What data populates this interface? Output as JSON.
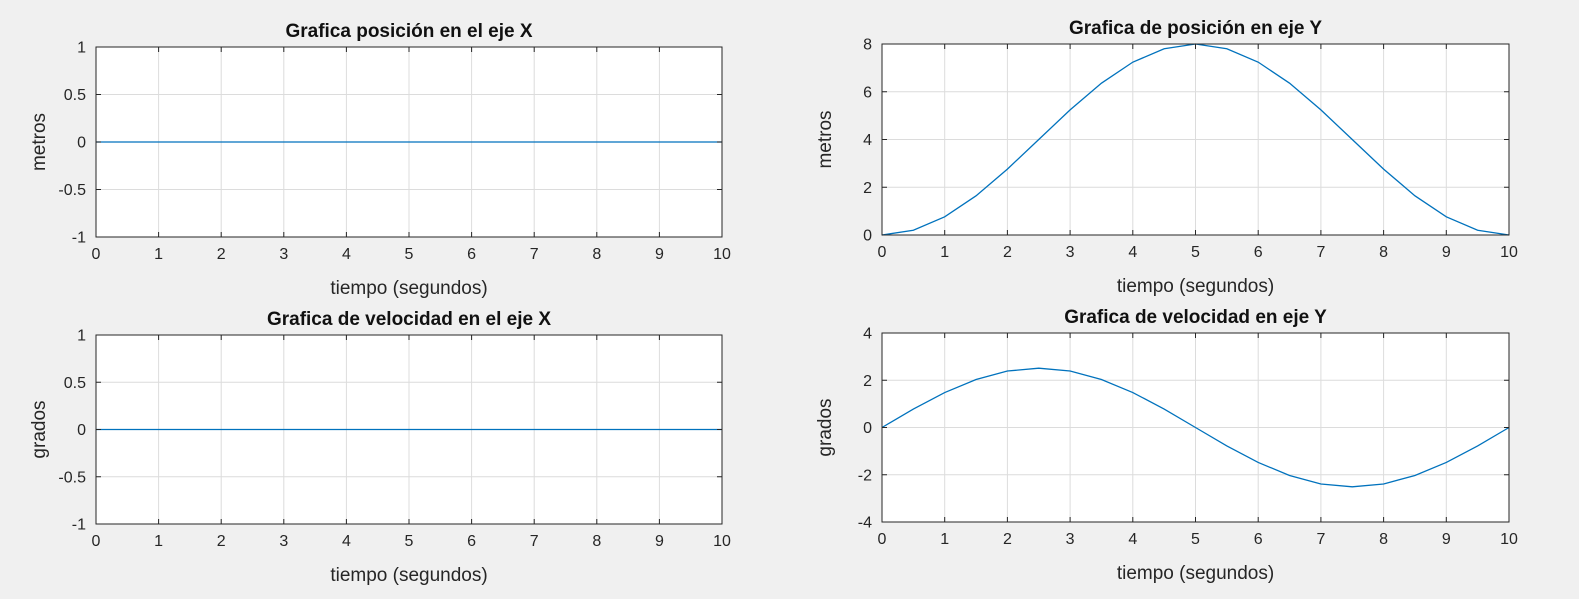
{
  "chart_data": [
    {
      "type": "line",
      "title": "Grafica posición en el eje X",
      "xlabel": "tiempo (segundos)",
      "ylabel": "metros",
      "xlim": [
        0,
        10
      ],
      "ylim": [
        -1,
        1
      ],
      "xticks": [
        0,
        1,
        2,
        3,
        4,
        5,
        6,
        7,
        8,
        9,
        10
      ],
      "yticks": [
        -1,
        -0.5,
        0,
        0.5,
        1
      ],
      "grid": true,
      "color": "#0072BD",
      "series": [
        {
          "x": [
            0,
            1,
            2,
            3,
            4,
            5,
            6,
            7,
            8,
            9,
            10
          ],
          "y": [
            0,
            0,
            0,
            0,
            0,
            0,
            0,
            0,
            0,
            0,
            0
          ]
        }
      ]
    },
    {
      "type": "line",
      "title": "Grafica de posición en eje Y",
      "xlabel": "tiempo (segundos)",
      "ylabel": "metros",
      "xlim": [
        0,
        10
      ],
      "ylim": [
        0,
        8
      ],
      "xticks": [
        0,
        1,
        2,
        3,
        4,
        5,
        6,
        7,
        8,
        9,
        10
      ],
      "yticks": [
        0,
        2,
        4,
        6,
        8
      ],
      "grid": true,
      "color": "#0072BD",
      "series": [
        {
          "x": [
            0,
            0.5,
            1,
            1.5,
            2,
            2.5,
            3,
            3.5,
            4,
            4.5,
            5,
            5.5,
            6,
            6.5,
            7,
            7.5,
            8,
            8.5,
            9,
            9.5,
            10
          ],
          "y": [
            0,
            0.2,
            0.76,
            1.64,
            2.76,
            4.0,
            5.24,
            6.36,
            7.24,
            7.8,
            8.0,
            7.8,
            7.24,
            6.36,
            5.24,
            4.0,
            2.76,
            1.64,
            0.76,
            0.2,
            0
          ]
        }
      ]
    },
    {
      "type": "line",
      "title": "Grafica de velocidad en el eje X",
      "xlabel": "tiempo (segundos)",
      "ylabel": "grados",
      "xlim": [
        0,
        10
      ],
      "ylim": [
        -1,
        1
      ],
      "xticks": [
        0,
        1,
        2,
        3,
        4,
        5,
        6,
        7,
        8,
        9,
        10
      ],
      "yticks": [
        -1,
        -0.5,
        0,
        0.5,
        1
      ],
      "grid": true,
      "color": "#0072BD",
      "series": [
        {
          "x": [
            0,
            1,
            2,
            3,
            4,
            5,
            6,
            7,
            8,
            9,
            10
          ],
          "y": [
            0,
            0,
            0,
            0,
            0,
            0,
            0,
            0,
            0,
            0,
            0
          ]
        }
      ]
    },
    {
      "type": "line",
      "title": "Grafica de velocidad en eje Y",
      "xlabel": "tiempo (segundos)",
      "ylabel": "grados",
      "xlim": [
        0,
        10
      ],
      "ylim": [
        -4,
        4
      ],
      "xticks": [
        0,
        1,
        2,
        3,
        4,
        5,
        6,
        7,
        8,
        9,
        10
      ],
      "yticks": [
        -4,
        -2,
        0,
        2,
        4
      ],
      "grid": true,
      "color": "#0072BD",
      "series": [
        {
          "x": [
            0,
            0.5,
            1,
            1.5,
            2,
            2.5,
            3,
            3.5,
            4,
            4.5,
            5,
            5.5,
            6,
            6.5,
            7,
            7.5,
            8,
            8.5,
            9,
            9.5,
            10
          ],
          "y": [
            0,
            0.78,
            1.48,
            2.03,
            2.39,
            2.51,
            2.39,
            2.03,
            1.48,
            0.78,
            0,
            -0.78,
            -1.48,
            -2.03,
            -2.39,
            -2.51,
            -2.39,
            -2.03,
            -1.48,
            -0.78,
            0
          ]
        }
      ]
    }
  ]
}
